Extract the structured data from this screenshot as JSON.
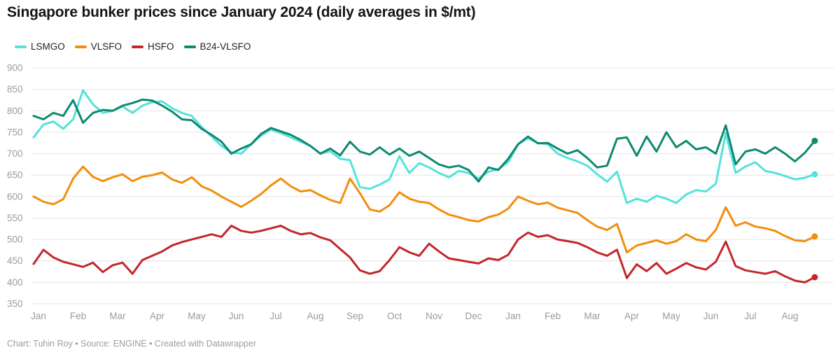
{
  "header": {
    "title": "Singapore bunker prices since January 2024 (daily averages in $/mt)"
  },
  "footer": {
    "credit": "Chart: Tuhin Roy • Source: ENGINE • Created with Datawrapper"
  },
  "chart_data": {
    "type": "line",
    "title": "Singapore bunker prices since January 2024 (daily averages in $/mt)",
    "ylabel": "$/mt",
    "xlabel": "",
    "ylim": [
      350,
      900
    ],
    "y_ticks": [
      900,
      850,
      800,
      750,
      700,
      650,
      600,
      550,
      500,
      450,
      400,
      350
    ],
    "x_tick_labels": [
      "Jan",
      "Feb",
      "Mar",
      "Apr",
      "May",
      "Jun",
      "Jul",
      "Aug",
      "Sep",
      "Oct",
      "Nov",
      "Dec",
      "Jan",
      "Feb",
      "Mar",
      "Apr",
      "May",
      "Jun",
      "Jul",
      "Aug"
    ],
    "x_range_note": "Jan 2024 through late Aug 2025",
    "points_per_month": 4,
    "grid": "horizontal",
    "legend_position": "top-left",
    "axis_label_color": "#9b9b9b",
    "grid_color": "#e4e4e4",
    "series": [
      {
        "name": "LSMGO",
        "color": "#55e2dc",
        "values": [
          738,
          768,
          775,
          758,
          780,
          848,
          815,
          795,
          800,
          810,
          795,
          812,
          820,
          822,
          806,
          795,
          788,
          762,
          740,
          718,
          703,
          700,
          722,
          742,
          756,
          748,
          738,
          728,
          718,
          700,
          706,
          688,
          685,
          622,
          618,
          628,
          640,
          694,
          655,
          678,
          668,
          655,
          645,
          660,
          655,
          642,
          658,
          664,
          680,
          722,
          736,
          725,
          722,
          700,
          690,
          682,
          672,
          652,
          635,
          658,
          585,
          595,
          588,
          602,
          595,
          585,
          605,
          615,
          612,
          630,
          748,
          655,
          670,
          680,
          660,
          655,
          648,
          640,
          644,
          652
        ]
      },
      {
        "name": "VLSFO",
        "color": "#f08f0e",
        "values": [
          600,
          588,
          582,
          594,
          642,
          670,
          646,
          636,
          645,
          652,
          636,
          646,
          650,
          656,
          640,
          632,
          645,
          624,
          614,
          600,
          588,
          576,
          590,
          606,
          626,
          642,
          624,
          612,
          615,
          603,
          592,
          585,
          642,
          608,
          570,
          565,
          580,
          610,
          595,
          588,
          585,
          570,
          558,
          552,
          545,
          542,
          552,
          558,
          572,
          600,
          590,
          582,
          586,
          574,
          568,
          562,
          545,
          530,
          522,
          536,
          470,
          486,
          492,
          498,
          490,
          496,
          512,
          500,
          496,
          522,
          575,
          532,
          540,
          530,
          526,
          520,
          508,
          498,
          496,
          507
        ]
      },
      {
        "name": "HSFO",
        "color": "#c2272b",
        "values": [
          443,
          476,
          458,
          448,
          442,
          436,
          446,
          424,
          440,
          446,
          420,
          452,
          462,
          472,
          486,
          494,
          500,
          506,
          512,
          506,
          532,
          520,
          516,
          520,
          526,
          532,
          520,
          512,
          515,
          505,
          498,
          478,
          458,
          428,
          420,
          426,
          452,
          482,
          470,
          462,
          490,
          472,
          456,
          452,
          448,
          444,
          456,
          452,
          464,
          500,
          516,
          506,
          510,
          500,
          496,
          492,
          482,
          470,
          462,
          476,
          410,
          442,
          426,
          445,
          420,
          432,
          445,
          435,
          430,
          448,
          495,
          438,
          428,
          424,
          420,
          426,
          414,
          404,
          400,
          412
        ]
      },
      {
        "name": "B24-VLSFO",
        "color": "#0d8a6f",
        "values": [
          788,
          780,
          795,
          788,
          825,
          772,
          795,
          802,
          800,
          812,
          818,
          826,
          824,
          812,
          798,
          780,
          778,
          758,
          744,
          728,
          700,
          712,
          722,
          746,
          760,
          752,
          744,
          732,
          718,
          700,
          712,
          696,
          728,
          705,
          698,
          715,
          698,
          712,
          695,
          705,
          690,
          675,
          668,
          672,
          662,
          635,
          668,
          662,
          688,
          722,
          740,
          724,
          725,
          712,
          700,
          708,
          690,
          668,
          672,
          735,
          738,
          695,
          740,
          705,
          750,
          715,
          730,
          710,
          715,
          700,
          766,
          675,
          705,
          710,
          700,
          715,
          700,
          682,
          702,
          730
        ]
      }
    ]
  }
}
